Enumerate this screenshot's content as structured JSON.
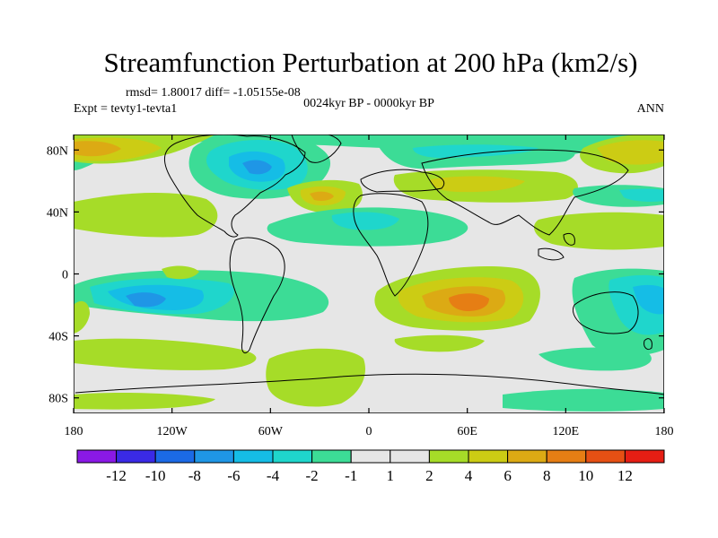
{
  "chart_data": {
    "type": "filled-contour map",
    "title": "Streamfunction Perturbation at 200 hPa (km2/s)",
    "left_string_1": "rmsd= 1.80017 diff= -1.05155e-08",
    "left_string_2": "Expt = tevty1-tevta1",
    "center_string": "0024kyr BP - 0000kyr BP",
    "right_string": "ANN",
    "x_axis": {
      "range": [
        -180,
        180
      ],
      "ticks": [
        "180",
        "120W",
        "60W",
        "0",
        "60E",
        "120E",
        "180"
      ]
    },
    "y_axis": {
      "range": [
        -90,
        90
      ],
      "ticks": [
        "80N",
        "40N",
        "0",
        "40S",
        "80S"
      ]
    },
    "colorbar": {
      "labels": [
        "-12",
        "-10",
        "-8",
        "-6",
        "-4",
        "-2",
        "-1",
        "1",
        "2",
        "4",
        "6",
        "8",
        "10",
        "12"
      ],
      "colors": [
        "#8a19e6",
        "#3a2ae6",
        "#1b6ae6",
        "#1f96e6",
        "#15bde6",
        "#1fd6cc",
        "#3cdc96",
        "#e6e6e6",
        "#a6dc28",
        "#cccc14",
        "#dcaa14",
        "#e67e14",
        "#e65014",
        "#e61e14"
      ]
    },
    "anomaly_features": [
      {
        "lon": -95,
        "lat": 58,
        "value": -8,
        "note": "North America / Hudson Bay low"
      },
      {
        "lon": -132,
        "lat": -28,
        "value": -6,
        "note": "South Pacific low"
      },
      {
        "lon": 60,
        "lat": -28,
        "value": 8,
        "note": "Southern Indian Ocean high"
      },
      {
        "lon": -170,
        "lat": 72,
        "value": 6,
        "note": "Arctic Pacific high"
      },
      {
        "lon": -30,
        "lat": 42,
        "value": 6,
        "note": "North Atlantic high"
      },
      {
        "lon": 165,
        "lat": -25,
        "value": -6,
        "note": "Coral Sea low"
      },
      {
        "lon": -55,
        "lat": -75,
        "value": 2,
        "note": "Antarctic high"
      }
    ]
  }
}
